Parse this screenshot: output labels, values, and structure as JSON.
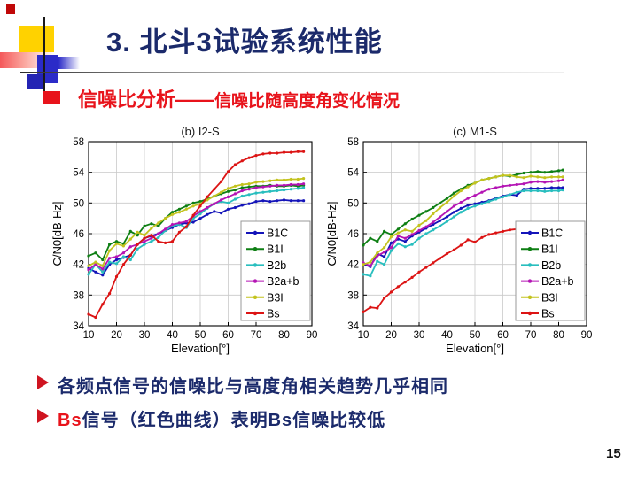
{
  "title": "3. 北斗3试验系统性能",
  "subtitle": {
    "main": "信噪比分析——",
    "rest": "信噪比随高度角变化情况"
  },
  "bullets": [
    {
      "prefix": "",
      "text": "各频点信号的信噪比与高度角相关趋势几乎相同"
    },
    {
      "prefix": "Bs",
      "text": "信号（红色曲线）表明Bs信噪比较低"
    }
  ],
  "page_number": "15",
  "colors": {
    "title_navy": "#1b2a6b",
    "accent_red": "#e8131b",
    "b1c_blue": "#1414b9",
    "b1i_green": "#0e7f14",
    "b2b_cyan": "#28bebe",
    "b2ab_magenta": "#b414b4",
    "b3i_yellow": "#c3c31e",
    "bs_red": "#dc1414"
  },
  "chart_data": [
    {
      "type": "line",
      "title": "(b) I2-S",
      "xlabel": "Elevation[°]",
      "ylabel": "C/N0[dB-Hz]",
      "xlim": [
        10,
        90
      ],
      "ylim": [
        34,
        58
      ],
      "xticks": [
        10,
        20,
        30,
        40,
        50,
        60,
        70,
        80,
        90
      ],
      "yticks": [
        34,
        38,
        42,
        46,
        50,
        54,
        58
      ],
      "grid": true,
      "legend_position": "lower right",
      "x": [
        10,
        12.5,
        15,
        17.5,
        20,
        22.5,
        25,
        27.5,
        30,
        32.5,
        35,
        37.5,
        40,
        42.5,
        45,
        47.5,
        50,
        52.5,
        55,
        57.5,
        60,
        62.5,
        65,
        67.5,
        70,
        72.5,
        75,
        77.5,
        80,
        82.5,
        85,
        87
      ],
      "series": [
        {
          "name": "B1C",
          "color": "#1414b9",
          "values": [
            41.5,
            41.0,
            40.6,
            42.0,
            42.6,
            42.9,
            43.2,
            44.6,
            45.4,
            45.7,
            46.0,
            46.4,
            46.8,
            47.2,
            47.4,
            47.5,
            48.0,
            48.5,
            48.9,
            48.7,
            49.2,
            49.4,
            49.7,
            49.9,
            50.2,
            50.3,
            50.2,
            50.3,
            50.4,
            50.3,
            50.3,
            50.3
          ]
        },
        {
          "name": "B1I",
          "color": "#0e7f14",
          "values": [
            43.1,
            43.5,
            42.6,
            44.6,
            45.0,
            44.7,
            46.3,
            45.8,
            47.0,
            47.3,
            47.0,
            48.0,
            48.8,
            49.2,
            49.6,
            50.0,
            50.2,
            50.5,
            50.9,
            51.2,
            51.5,
            51.7,
            52.0,
            52.1,
            52.2,
            52.2,
            52.3,
            52.2,
            52.2,
            52.3,
            52.2,
            52.3
          ]
        },
        {
          "name": "B2b",
          "color": "#28bebe",
          "values": [
            40.7,
            42.0,
            41.0,
            42.3,
            42.1,
            43.0,
            42.6,
            44.0,
            44.6,
            45.0,
            45.5,
            46.4,
            47.0,
            47.2,
            46.8,
            48.0,
            48.6,
            49.3,
            49.9,
            50.2,
            50.0,
            50.5,
            50.9,
            51.1,
            51.3,
            51.4,
            51.5,
            51.6,
            51.7,
            51.8,
            51.9,
            52.0
          ]
        },
        {
          "name": "B2a+b",
          "color": "#b414b4",
          "values": [
            41.3,
            42.0,
            41.4,
            42.8,
            43.0,
            43.5,
            44.3,
            44.6,
            45.0,
            45.4,
            46.0,
            46.6,
            47.2,
            47.4,
            47.6,
            48.3,
            48.9,
            49.4,
            49.9,
            50.4,
            50.8,
            51.2,
            51.6,
            51.8,
            52.0,
            52.1,
            52.2,
            52.3,
            52.3,
            52.4,
            52.4,
            52.5
          ]
        },
        {
          "name": "B3I",
          "color": "#c3c31e",
          "values": [
            41.8,
            42.3,
            41.8,
            43.8,
            44.7,
            44.4,
            45.3,
            46.2,
            45.8,
            46.7,
            47.4,
            48.0,
            48.5,
            48.8,
            49.2,
            49.6,
            49.9,
            50.4,
            50.9,
            51.4,
            51.9,
            52.2,
            52.4,
            52.5,
            52.7,
            52.8,
            52.9,
            53.0,
            53.0,
            53.1,
            53.1,
            53.2
          ]
        },
        {
          "name": "Bs",
          "color": "#dc1414",
          "values": [
            35.5,
            35.1,
            36.8,
            38.2,
            40.4,
            42.0,
            43.2,
            44.6,
            45.4,
            45.8,
            45.0,
            44.8,
            45.0,
            46.2,
            46.9,
            48.4,
            49.6,
            50.8,
            51.8,
            52.8,
            54.1,
            55.0,
            55.5,
            55.9,
            56.2,
            56.4,
            56.5,
            56.5,
            56.6,
            56.6,
            56.7,
            56.7
          ]
        }
      ]
    },
    {
      "type": "line",
      "title": "(c) M1-S",
      "xlabel": "Elevation[°]",
      "ylabel": "C/N0[dB-Hz]",
      "xlim": [
        10,
        90
      ],
      "ylim": [
        34,
        58
      ],
      "xticks": [
        10,
        20,
        30,
        40,
        50,
        60,
        70,
        80,
        90
      ],
      "yticks": [
        34,
        38,
        42,
        46,
        50,
        54,
        58
      ],
      "grid": true,
      "legend_position": "lower right",
      "x": [
        10,
        12.5,
        15,
        17.5,
        20,
        22.5,
        25,
        27.5,
        30,
        32.5,
        35,
        37.5,
        40,
        42.5,
        45,
        47.5,
        50,
        52.5,
        55,
        57.5,
        60,
        62.5,
        65,
        67.5,
        70,
        72.5,
        75,
        77.5,
        80,
        81.5
      ],
      "series": [
        {
          "name": "B1C",
          "color": "#1414b9",
          "values": [
            42.0,
            41.7,
            43.4,
            43.0,
            44.8,
            45.3,
            45.0,
            45.7,
            46.2,
            46.7,
            47.2,
            47.7,
            48.2,
            48.8,
            49.3,
            49.7,
            49.9,
            50.1,
            50.3,
            50.6,
            50.9,
            51.1,
            51.0,
            51.8,
            51.9,
            51.9,
            51.9,
            52.0,
            52.0,
            52.0
          ]
        },
        {
          "name": "B1I",
          "color": "#0e7f14",
          "values": [
            44.5,
            45.4,
            45.0,
            46.3,
            45.9,
            46.6,
            47.3,
            47.9,
            48.4,
            48.9,
            49.4,
            50.0,
            50.6,
            51.3,
            51.8,
            52.3,
            52.6,
            53.0,
            53.2,
            53.4,
            53.6,
            53.5,
            53.7,
            53.9,
            54.0,
            54.1,
            54.0,
            54.1,
            54.2,
            54.3
          ]
        },
        {
          "name": "B2b",
          "color": "#28bebe",
          "values": [
            40.7,
            40.5,
            42.4,
            42.0,
            43.8,
            44.7,
            44.3,
            44.6,
            45.4,
            46.0,
            46.5,
            47.0,
            47.6,
            48.2,
            48.8,
            49.3,
            49.6,
            49.9,
            50.2,
            50.5,
            50.8,
            51.1,
            51.4,
            51.6,
            51.6,
            51.6,
            51.5,
            51.6,
            51.6,
            51.7
          ]
        },
        {
          "name": "B2a+b",
          "color": "#b414b4",
          "values": [
            42.2,
            41.8,
            43.1,
            43.6,
            44.2,
            45.7,
            45.4,
            45.9,
            46.4,
            46.9,
            47.5,
            48.2,
            48.9,
            49.6,
            50.1,
            50.6,
            51.0,
            51.4,
            51.8,
            52.0,
            52.2,
            52.3,
            52.4,
            52.5,
            52.7,
            52.8,
            52.7,
            52.8,
            52.9,
            53.0
          ]
        },
        {
          "name": "B3I",
          "color": "#c3c31e",
          "values": [
            42.0,
            42.3,
            43.5,
            44.2,
            45.6,
            46.1,
            46.5,
            46.3,
            47.1,
            47.7,
            48.6,
            49.4,
            50.1,
            50.9,
            51.6,
            52.1,
            52.6,
            53.0,
            53.2,
            53.4,
            53.6,
            53.6,
            53.4,
            53.3,
            53.5,
            53.4,
            53.3,
            53.4,
            53.4,
            53.4
          ]
        },
        {
          "name": "Bs",
          "color": "#dc1414",
          "values": [
            35.8,
            36.4,
            36.3,
            37.6,
            38.4,
            39.1,
            39.7,
            40.3,
            41.0,
            41.6,
            42.2,
            42.8,
            43.4,
            43.9,
            44.5,
            45.2,
            44.9,
            45.5,
            45.9,
            46.1,
            46.3,
            46.5,
            46.6,
            46.8,
            47.3,
            47.2,
            47.2,
            47.2,
            47.3,
            47.4
          ]
        }
      ]
    }
  ]
}
